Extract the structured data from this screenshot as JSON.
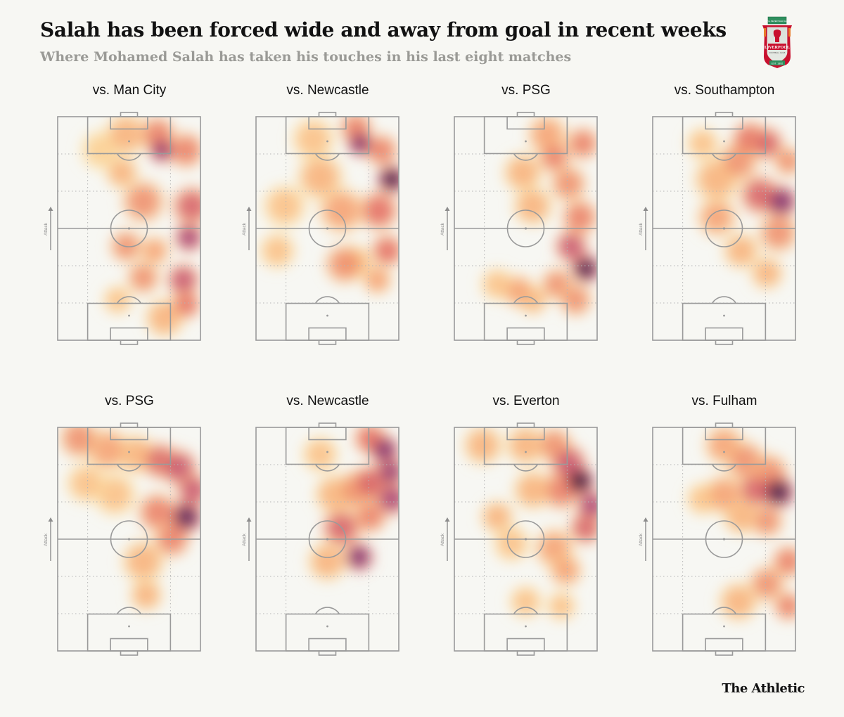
{
  "header": {
    "title": "Salah has been forced wide and away from goal in recent weeks",
    "subtitle": "Where Mohamed Salah has taken his touches in his last eight matches"
  },
  "crest": {
    "top_text": "YOU'LL NEVER WALK ALONE",
    "name": "LIVERPOOL",
    "sub": "FOOTBALL CLUB",
    "est": "EST. 1892"
  },
  "axis_label": "Attack",
  "brand": "The Athletic",
  "colors": {
    "background": "#f7f7f3",
    "pitch_lines": "#9a9a9a",
    "grid": "#b5b5b5"
  },
  "chart_data": [
    {
      "type": "heatmap",
      "title": "vs. Man City",
      "x_range": [
        0,
        100
      ],
      "y_range": [
        0,
        100
      ],
      "blobs": [
        [
          48,
          92,
          13,
          0.3
        ],
        [
          70,
          92,
          11,
          0.45
        ],
        [
          73,
          85,
          8,
          0.75
        ],
        [
          90,
          85,
          11,
          0.45
        ],
        [
          45,
          75,
          10,
          0.3
        ],
        [
          60,
          62,
          13,
          0.4
        ],
        [
          94,
          60,
          12,
          0.55
        ],
        [
          92,
          46,
          9,
          0.7
        ],
        [
          48,
          42,
          10,
          0.4
        ],
        [
          68,
          40,
          9,
          0.35
        ],
        [
          60,
          28,
          10,
          0.4
        ],
        [
          88,
          27,
          10,
          0.6
        ],
        [
          90,
          16,
          9,
          0.5
        ],
        [
          75,
          10,
          12,
          0.3
        ],
        [
          42,
          18,
          9,
          0.25
        ],
        [
          30,
          85,
          12,
          0.2
        ]
      ]
    },
    {
      "type": "heatmap",
      "title": "vs. Newcastle",
      "x_range": [
        0,
        100
      ],
      "y_range": [
        0,
        100
      ],
      "blobs": [
        [
          40,
          90,
          13,
          0.25
        ],
        [
          70,
          95,
          10,
          0.45
        ],
        [
          73,
          88,
          8,
          0.8
        ],
        [
          95,
          72,
          9,
          0.95
        ],
        [
          88,
          85,
          10,
          0.45
        ],
        [
          45,
          73,
          14,
          0.3
        ],
        [
          20,
          60,
          13,
          0.25
        ],
        [
          60,
          58,
          14,
          0.35
        ],
        [
          86,
          58,
          12,
          0.5
        ],
        [
          15,
          40,
          11,
          0.25
        ],
        [
          92,
          40,
          10,
          0.5
        ],
        [
          62,
          34,
          12,
          0.4
        ],
        [
          85,
          27,
          9,
          0.35
        ],
        [
          70,
          35,
          10,
          0.3
        ]
      ]
    },
    {
      "type": "heatmap",
      "title": "vs. PSG",
      "x_range": [
        0,
        100
      ],
      "y_range": [
        0,
        100
      ],
      "blobs": [
        [
          65,
          92,
          12,
          0.35
        ],
        [
          70,
          82,
          10,
          0.45
        ],
        [
          90,
          88,
          10,
          0.45
        ],
        [
          48,
          75,
          12,
          0.3
        ],
        [
          80,
          70,
          11,
          0.4
        ],
        [
          55,
          60,
          12,
          0.3
        ],
        [
          88,
          55,
          11,
          0.45
        ],
        [
          92,
          32,
          9,
          0.95
        ],
        [
          82,
          42,
          10,
          0.6
        ],
        [
          45,
          22,
          10,
          0.35
        ],
        [
          55,
          18,
          9,
          0.3
        ],
        [
          72,
          25,
          10,
          0.4
        ],
        [
          30,
          25,
          10,
          0.25
        ],
        [
          85,
          18,
          10,
          0.4
        ]
      ]
    },
    {
      "type": "heatmap",
      "title": "vs. Southampton",
      "x_range": [
        0,
        100
      ],
      "y_range": [
        0,
        100
      ],
      "blobs": [
        [
          68,
          90,
          11,
          0.5
        ],
        [
          80,
          88,
          10,
          0.55
        ],
        [
          60,
          80,
          12,
          0.4
        ],
        [
          75,
          65,
          12,
          0.55
        ],
        [
          90,
          62,
          10,
          0.8
        ],
        [
          45,
          72,
          14,
          0.3
        ],
        [
          45,
          55,
          12,
          0.35
        ],
        [
          88,
          48,
          12,
          0.4
        ],
        [
          62,
          40,
          11,
          0.3
        ],
        [
          80,
          30,
          10,
          0.3
        ],
        [
          35,
          88,
          10,
          0.25
        ],
        [
          95,
          80,
          9,
          0.4
        ]
      ]
    },
    {
      "type": "heatmap",
      "title": "vs. PSG",
      "x_range": [
        0,
        100
      ],
      "y_range": [
        0,
        100
      ],
      "blobs": [
        [
          15,
          95,
          12,
          0.4
        ],
        [
          35,
          90,
          13,
          0.35
        ],
        [
          55,
          88,
          12,
          0.3
        ],
        [
          72,
          85,
          11,
          0.55
        ],
        [
          85,
          82,
          11,
          0.6
        ],
        [
          95,
          72,
          10,
          0.6
        ],
        [
          90,
          60,
          10,
          0.9
        ],
        [
          70,
          62,
          12,
          0.45
        ],
        [
          40,
          70,
          13,
          0.25
        ],
        [
          20,
          75,
          12,
          0.25
        ],
        [
          60,
          40,
          13,
          0.3
        ],
        [
          62,
          25,
          10,
          0.3
        ],
        [
          80,
          50,
          11,
          0.45
        ]
      ]
    },
    {
      "type": "heatmap",
      "title": "vs. Newcastle",
      "x_range": [
        0,
        100
      ],
      "y_range": [
        0,
        100
      ],
      "blobs": [
        [
          80,
          95,
          10,
          0.5
        ],
        [
          90,
          90,
          9,
          0.8
        ],
        [
          94,
          80,
          9,
          0.75
        ],
        [
          80,
          75,
          11,
          0.55
        ],
        [
          95,
          68,
          10,
          0.7
        ],
        [
          70,
          72,
          12,
          0.4
        ],
        [
          60,
          55,
          12,
          0.55
        ],
        [
          72,
          42,
          9,
          0.8
        ],
        [
          55,
          70,
          12,
          0.3
        ],
        [
          50,
          40,
          12,
          0.3
        ],
        [
          45,
          88,
          11,
          0.25
        ],
        [
          80,
          60,
          10,
          0.45
        ]
      ]
    },
    {
      "type": "heatmap",
      "title": "vs. Everton",
      "x_range": [
        0,
        100
      ],
      "y_range": [
        0,
        100
      ],
      "blobs": [
        [
          20,
          92,
          12,
          0.3
        ],
        [
          50,
          92,
          12,
          0.3
        ],
        [
          70,
          92,
          11,
          0.4
        ],
        [
          80,
          84,
          11,
          0.6
        ],
        [
          88,
          76,
          9,
          1.0
        ],
        [
          96,
          65,
          9,
          0.7
        ],
        [
          92,
          55,
          10,
          0.55
        ],
        [
          75,
          72,
          12,
          0.45
        ],
        [
          55,
          72,
          12,
          0.3
        ],
        [
          30,
          60,
          10,
          0.3
        ],
        [
          40,
          48,
          11,
          0.25
        ],
        [
          70,
          46,
          12,
          0.35
        ],
        [
          78,
          36,
          10,
          0.35
        ],
        [
          50,
          22,
          10,
          0.25
        ],
        [
          75,
          20,
          9,
          0.25
        ]
      ]
    },
    {
      "type": "heatmap",
      "title": "vs. Fulham",
      "x_range": [
        0,
        100
      ],
      "y_range": [
        0,
        100
      ],
      "blobs": [
        [
          50,
          92,
          12,
          0.35
        ],
        [
          65,
          85,
          12,
          0.4
        ],
        [
          82,
          80,
          11,
          0.4
        ],
        [
          88,
          71,
          10,
          0.95
        ],
        [
          72,
          72,
          11,
          0.55
        ],
        [
          50,
          70,
          12,
          0.35
        ],
        [
          35,
          68,
          10,
          0.25
        ],
        [
          80,
          58,
          10,
          0.4
        ],
        [
          62,
          60,
          11,
          0.3
        ],
        [
          95,
          40,
          10,
          0.45
        ],
        [
          80,
          30,
          11,
          0.4
        ],
        [
          60,
          22,
          12,
          0.3
        ],
        [
          95,
          20,
          9,
          0.45
        ]
      ]
    }
  ]
}
